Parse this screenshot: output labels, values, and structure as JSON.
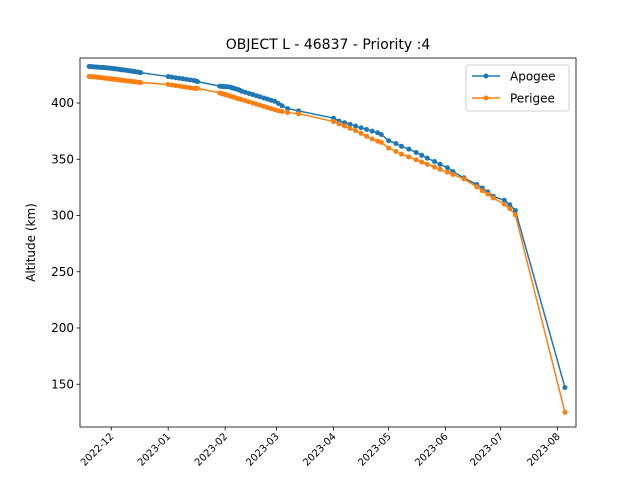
{
  "chart_data": {
    "type": "line",
    "title": "OBJECT L - 46837 - Priority :4",
    "xlabel": "",
    "ylabel": "Altitude (km)",
    "x_axis_type": "date",
    "xlim": [
      "2022-11-14",
      "2023-08-11"
    ],
    "ylim": [
      112,
      440
    ],
    "x_ticks": [
      "2022-12-01",
      "2023-01-01",
      "2023-02-01",
      "2023-03-01",
      "2023-04-01",
      "2023-05-01",
      "2023-06-01",
      "2023-07-01",
      "2023-08-01"
    ],
    "x_tick_labels": [
      "2022-12",
      "2023-01",
      "2023-02",
      "2023-03",
      "2023-04",
      "2023-05",
      "2023-06",
      "2023-07",
      "2023-08"
    ],
    "y_ticks": [
      150,
      200,
      250,
      300,
      350,
      400
    ],
    "y_tick_labels": [
      "150",
      "200",
      "250",
      "300",
      "350",
      "400"
    ],
    "grid": false,
    "legend": "top-right",
    "series": [
      {
        "name": "Apogee",
        "color": "#1f77b4",
        "x": [
          "2022-11-19",
          "2022-11-20",
          "2022-11-21",
          "2022-11-22",
          "2022-11-23",
          "2022-11-24",
          "2022-11-25",
          "2022-11-26",
          "2022-11-27",
          "2022-11-28",
          "2022-11-29",
          "2022-11-30",
          "2022-12-01",
          "2022-12-02",
          "2022-12-03",
          "2022-12-04",
          "2022-12-05",
          "2022-12-06",
          "2022-12-07",
          "2022-12-08",
          "2022-12-09",
          "2022-12-10",
          "2022-12-11",
          "2022-12-12",
          "2022-12-13",
          "2022-12-14",
          "2022-12-15",
          "2022-12-16",
          "2022-12-17",
          "2023-01-01",
          "2023-01-03",
          "2023-01-05",
          "2023-01-07",
          "2023-01-09",
          "2023-01-11",
          "2023-01-13",
          "2023-01-15",
          "2023-01-16",
          "2023-01-17",
          "2023-01-29",
          "2023-01-30",
          "2023-01-31",
          "2023-02-01",
          "2023-02-02",
          "2023-02-03",
          "2023-02-04",
          "2023-02-05",
          "2023-02-06",
          "2023-02-07",
          "2023-02-08",
          "2023-02-09",
          "2023-02-10",
          "2023-02-12",
          "2023-02-14",
          "2023-02-16",
          "2023-02-18",
          "2023-02-20",
          "2023-02-22",
          "2023-02-24",
          "2023-02-26",
          "2023-02-28",
          "2023-03-02",
          "2023-03-04",
          "2023-03-07",
          "2023-03-13",
          "2023-04-01",
          "2023-04-04",
          "2023-04-07",
          "2023-04-10",
          "2023-04-13",
          "2023-04-16",
          "2023-04-19",
          "2023-04-22",
          "2023-04-25",
          "2023-04-27",
          "2023-05-01",
          "2023-05-05",
          "2023-05-08",
          "2023-05-12",
          "2023-05-16",
          "2023-05-19",
          "2023-05-22",
          "2023-05-26",
          "2023-05-29",
          "2023-06-02",
          "2023-06-05",
          "2023-06-11",
          "2023-06-18",
          "2023-06-21",
          "2023-06-24",
          "2023-06-27",
          "2023-07-03",
          "2023-07-06",
          "2023-07-09",
          "2023-08-05"
        ],
        "values": [
          432.5,
          432.3,
          432.2,
          432.0,
          432.0,
          431.8,
          431.7,
          431.6,
          431.5,
          431.3,
          431.1,
          431.0,
          430.8,
          430.6,
          430.4,
          430.2,
          430.0,
          429.7,
          429.5,
          429.3,
          429.1,
          428.9,
          428.6,
          428.4,
          428.1,
          427.9,
          427.6,
          427.3,
          427.0,
          423.5,
          423.0,
          422.5,
          422.0,
          421.5,
          421.0,
          420.5,
          420.0,
          419.5,
          419.0,
          415.0,
          414.8,
          414.6,
          414.6,
          414.5,
          414.3,
          414.0,
          413.5,
          413.0,
          412.5,
          412.0,
          411.3,
          410.5,
          409.5,
          408.5,
          407.5,
          406.5,
          405.5,
          404.5,
          403.5,
          402.5,
          401.5,
          399.5,
          397.5,
          395.0,
          393.0,
          386.5,
          384.0,
          382.5,
          381.0,
          379.5,
          378.0,
          376.5,
          375.0,
          373.5,
          372.0,
          366.5,
          364.0,
          361.5,
          359.0,
          356.0,
          353.5,
          351.0,
          348.0,
          345.5,
          342.5,
          339.0,
          333.5,
          327.5,
          324.5,
          321.0,
          317.0,
          313.5,
          309.5,
          304.5,
          147.0
        ]
      },
      {
        "name": "Perigee",
        "color": "#ff7f0e",
        "x": [
          "2022-11-19",
          "2022-11-20",
          "2022-11-21",
          "2022-11-22",
          "2022-11-23",
          "2022-11-24",
          "2022-11-25",
          "2022-11-26",
          "2022-11-27",
          "2022-11-28",
          "2022-11-29",
          "2022-11-30",
          "2022-12-01",
          "2022-12-02",
          "2022-12-03",
          "2022-12-04",
          "2022-12-05",
          "2022-12-06",
          "2022-12-07",
          "2022-12-08",
          "2022-12-09",
          "2022-12-10",
          "2022-12-11",
          "2022-12-12",
          "2022-12-13",
          "2022-12-14",
          "2022-12-15",
          "2022-12-16",
          "2022-12-17",
          "2023-01-01",
          "2023-01-03",
          "2023-01-05",
          "2023-01-07",
          "2023-01-09",
          "2023-01-11",
          "2023-01-13",
          "2023-01-15",
          "2023-01-16",
          "2023-01-17",
          "2023-01-29",
          "2023-01-30",
          "2023-01-31",
          "2023-02-01",
          "2023-02-02",
          "2023-02-03",
          "2023-02-04",
          "2023-02-05",
          "2023-02-06",
          "2023-02-07",
          "2023-02-08",
          "2023-02-09",
          "2023-02-10",
          "2023-02-12",
          "2023-02-14",
          "2023-02-16",
          "2023-02-18",
          "2023-02-20",
          "2023-02-22",
          "2023-02-24",
          "2023-02-26",
          "2023-02-28",
          "2023-03-02",
          "2023-03-04",
          "2023-03-07",
          "2023-03-13",
          "2023-04-01",
          "2023-04-04",
          "2023-04-07",
          "2023-04-10",
          "2023-04-13",
          "2023-04-16",
          "2023-04-19",
          "2023-04-22",
          "2023-04-25",
          "2023-04-27",
          "2023-05-01",
          "2023-05-05",
          "2023-05-08",
          "2023-05-12",
          "2023-05-16",
          "2023-05-19",
          "2023-05-22",
          "2023-05-26",
          "2023-05-29",
          "2023-06-02",
          "2023-06-05",
          "2023-06-11",
          "2023-06-18",
          "2023-06-21",
          "2023-06-24",
          "2023-06-27",
          "2023-07-03",
          "2023-07-06",
          "2023-07-09",
          "2023-08-05"
        ],
        "values": [
          423.5,
          423.4,
          423.3,
          423.2,
          423.0,
          422.8,
          422.6,
          422.4,
          422.2,
          422.0,
          421.8,
          421.6,
          421.4,
          421.2,
          421.0,
          420.8,
          420.6,
          420.4,
          420.2,
          420.0,
          419.8,
          419.6,
          419.4,
          419.2,
          419.0,
          418.8,
          418.6,
          418.4,
          418.2,
          416.5,
          416.0,
          415.5,
          415.0,
          414.5,
          414.0,
          413.5,
          413.0,
          413.0,
          413.0,
          409.0,
          408.5,
          408.0,
          407.5,
          407.0,
          406.5,
          406.0,
          405.5,
          405.0,
          404.5,
          404.0,
          403.5,
          403.0,
          402.0,
          401.0,
          400.0,
          399.0,
          398.0,
          397.0,
          396.0,
          395.0,
          394.0,
          393.0,
          392.5,
          391.5,
          390.5,
          383.5,
          381.5,
          379.5,
          377.5,
          375.5,
          373.0,
          370.5,
          368.0,
          366.0,
          365.0,
          360.0,
          357.0,
          354.5,
          352.0,
          349.5,
          347.5,
          345.5,
          343.0,
          341.0,
          338.5,
          336.5,
          332.5,
          325.5,
          322.0,
          319.0,
          315.5,
          310.0,
          306.0,
          300.5,
          125.0
        ]
      }
    ]
  }
}
